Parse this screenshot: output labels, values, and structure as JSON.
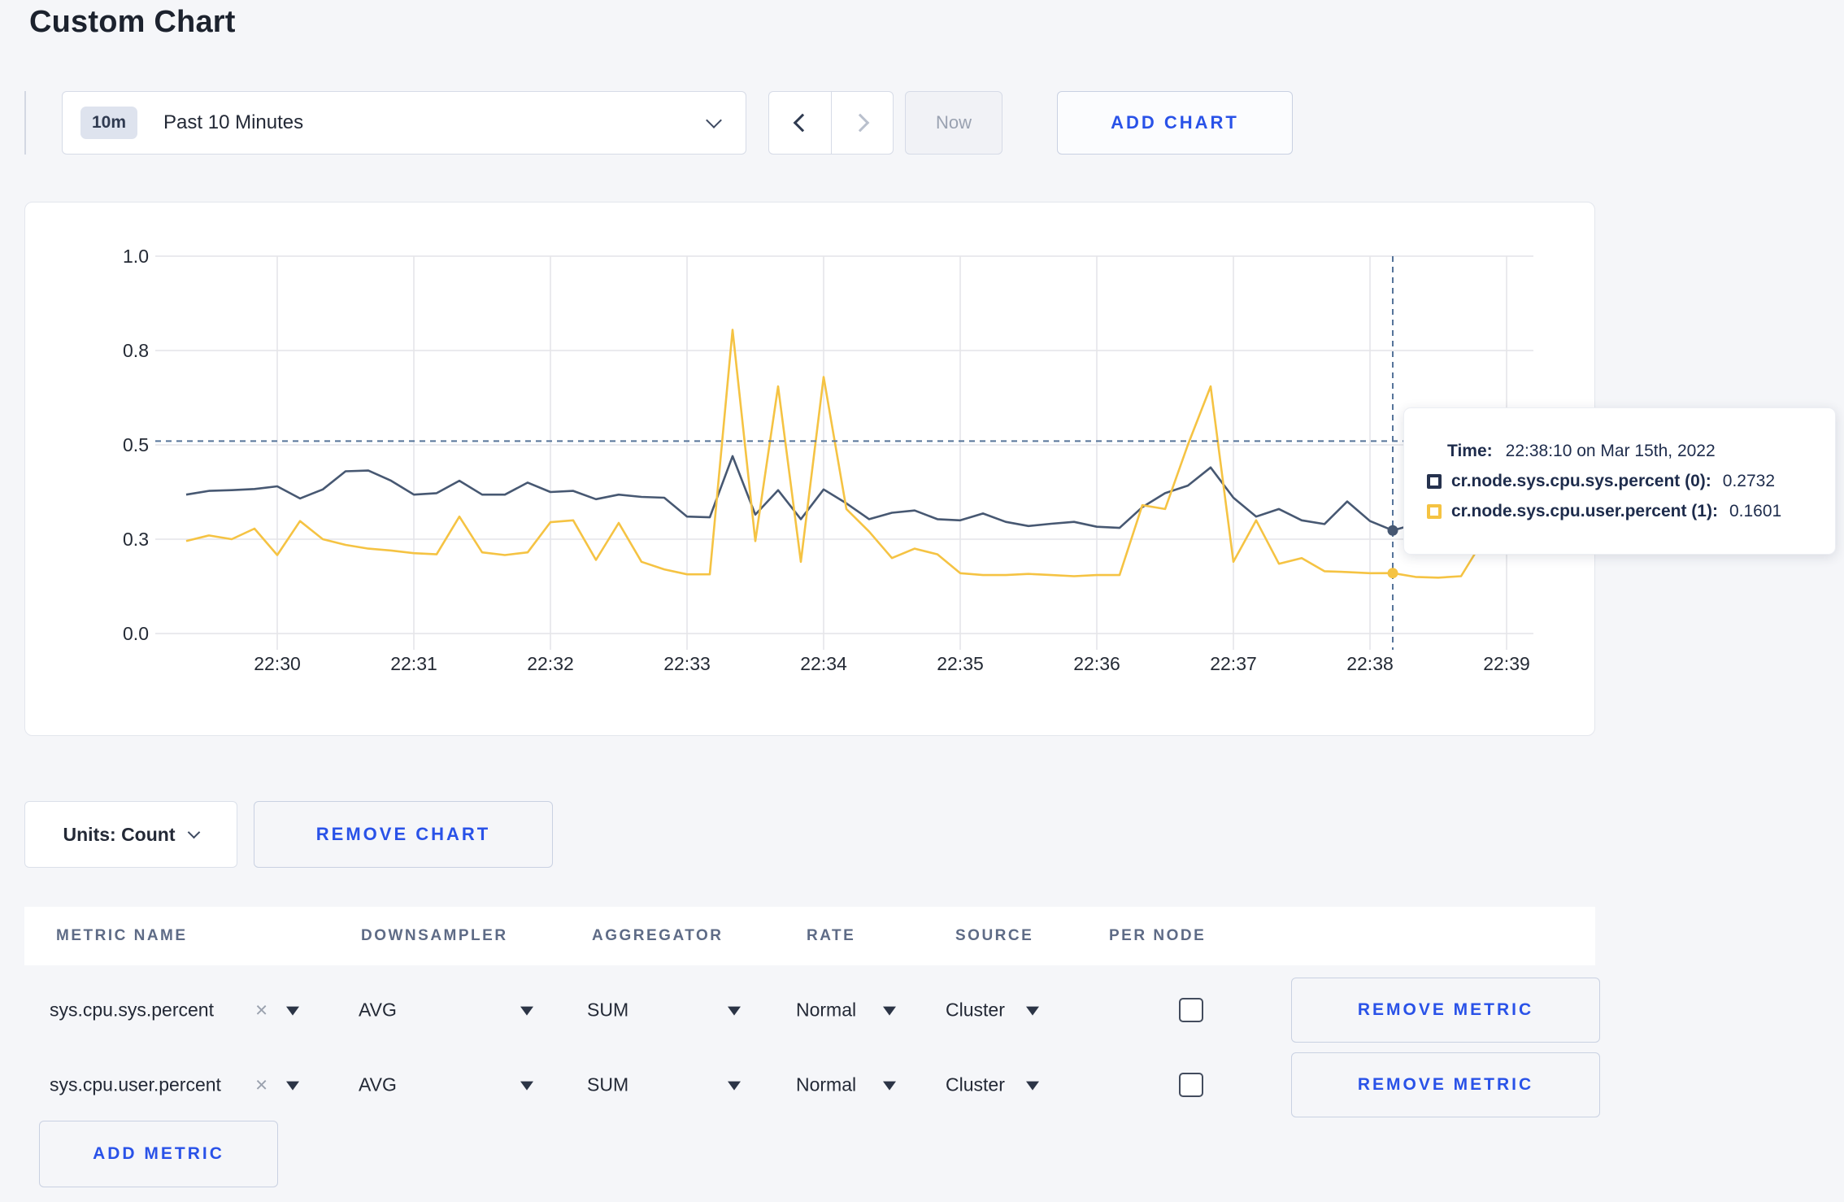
{
  "page_title": "Custom Chart",
  "toolbar": {
    "time_badge": "10m",
    "time_label": "Past 10 Minutes",
    "now_label": "Now",
    "add_chart_label": "ADD CHART"
  },
  "chart_data": {
    "type": "line",
    "title": "",
    "xlabel": "",
    "ylabel": "",
    "ylim": [
      0,
      1
    ],
    "grid": true,
    "start_time": "22:29:20",
    "interval_seconds": 10,
    "y_ticks": [
      {
        "value": 0,
        "label": "0.0"
      },
      {
        "value": 0.25,
        "label": "0.3"
      },
      {
        "value": 0.5,
        "label": "0.5"
      },
      {
        "value": 0.75,
        "label": "0.8"
      },
      {
        "value": 1.0,
        "label": "1.0"
      }
    ],
    "x_tick_labels": [
      "22:30",
      "22:31",
      "22:32",
      "22:33",
      "22:34",
      "22:35",
      "22:36",
      "22:37",
      "22:38",
      "22:39"
    ],
    "series": [
      {
        "name": "cr.node.sys.cpu.sys.percent",
        "color": "#475872",
        "values": [
          0.368,
          0.378,
          0.38,
          0.383,
          0.39,
          0.358,
          0.382,
          0.43,
          0.432,
          0.405,
          0.368,
          0.372,
          0.405,
          0.368,
          0.368,
          0.4,
          0.375,
          0.378,
          0.356,
          0.368,
          0.362,
          0.36,
          0.31,
          0.308,
          0.47,
          0.315,
          0.38,
          0.303,
          0.382,
          0.345,
          0.303,
          0.32,
          0.326,
          0.303,
          0.3,
          0.318,
          0.296,
          0.285,
          0.291,
          0.296,
          0.283,
          0.28,
          0.335,
          0.372,
          0.392,
          0.44,
          0.36,
          0.31,
          0.33,
          0.3,
          0.29,
          0.35,
          0.298,
          0.2732,
          0.29,
          0.315,
          0.3,
          0.297,
          0.3,
          0.305
        ]
      },
      {
        "name": "cr.node.sys.cpu.user.percent",
        "color": "#f5c343",
        "values": [
          0.245,
          0.26,
          0.25,
          0.278,
          0.208,
          0.298,
          0.25,
          0.235,
          0.225,
          0.22,
          0.213,
          0.21,
          0.31,
          0.215,
          0.208,
          0.215,
          0.295,
          0.3,
          0.195,
          0.293,
          0.19,
          0.17,
          0.157,
          0.157,
          0.805,
          0.245,
          0.655,
          0.19,
          0.68,
          0.33,
          0.27,
          0.2,
          0.225,
          0.21,
          0.16,
          0.155,
          0.155,
          0.158,
          0.155,
          0.152,
          0.155,
          0.155,
          0.34,
          0.33,
          0.5,
          0.655,
          0.19,
          0.3,
          0.185,
          0.2,
          0.165,
          0.163,
          0.16,
          0.1601,
          0.15,
          0.148,
          0.152,
          0.25,
          0.33,
          0.27
        ]
      }
    ],
    "crosshair": {
      "point_index": 53,
      "horizontal_value": 0.51
    },
    "legend_position": "tooltip"
  },
  "tooltip": {
    "time_label": "Time:",
    "time_value": "22:38:10 on Mar 15th, 2022",
    "series": [
      {
        "label": "cr.node.sys.cpu.sys.percent (0):",
        "value": "0.2732",
        "color": "#26324e"
      },
      {
        "label": "cr.node.sys.cpu.user.percent (1):",
        "value": "0.1601",
        "color": "#f5c342"
      }
    ]
  },
  "units_bar": {
    "units_label": "Units: Count",
    "remove_chart_label": "REMOVE CHART"
  },
  "metrics_table": {
    "columns": [
      "METRIC NAME",
      "DOWNSAMPLER",
      "AGGREGATOR",
      "RATE",
      "SOURCE",
      "PER NODE"
    ],
    "rows": [
      {
        "metric": "sys.cpu.sys.percent",
        "downsampler": "AVG",
        "aggregator": "SUM",
        "rate": "Normal",
        "source": "Cluster",
        "per_node_checked": false,
        "remove_label": "REMOVE METRIC"
      },
      {
        "metric": "sys.cpu.user.percent",
        "downsampler": "AVG",
        "aggregator": "SUM",
        "rate": "Normal",
        "source": "Cluster",
        "per_node_checked": false,
        "remove_label": "REMOVE METRIC"
      }
    ],
    "add_metric_label": "ADD METRIC"
  }
}
